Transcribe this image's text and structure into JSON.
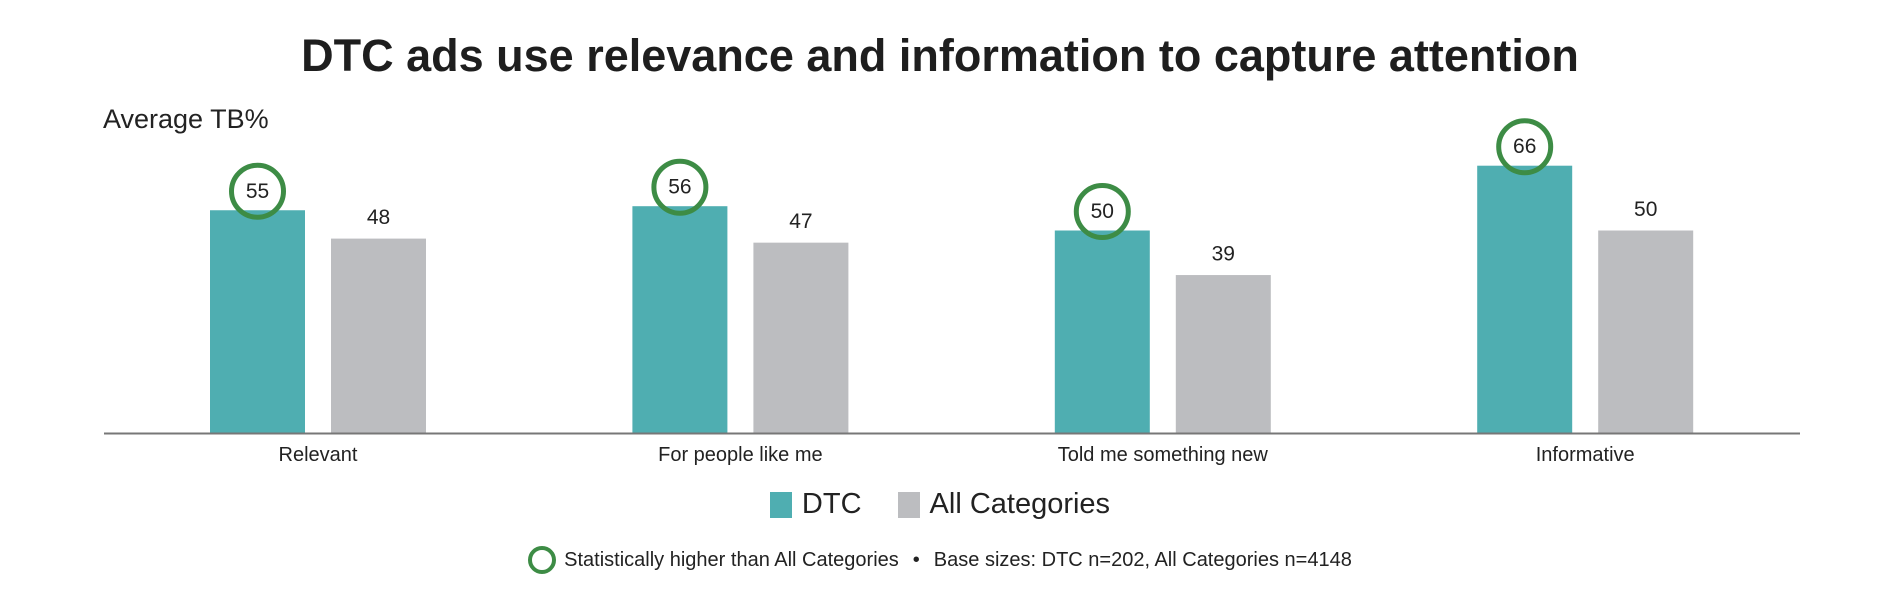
{
  "chart_data": {
    "type": "bar",
    "title": "DTC ads use relevance and information to capture attention",
    "ylabel": "Average TB%",
    "xlabel": "",
    "ylim": [
      0,
      100
    ],
    "grid": false,
    "legend_placement": "bottom",
    "categories": [
      "Relevant",
      "For people like me",
      "Told me something new",
      "Informative"
    ],
    "series": [
      {
        "name": "DTC",
        "values": [
          55,
          56,
          50,
          66
        ],
        "color": "#4faeb1",
        "significant": [
          true,
          true,
          true,
          true
        ]
      },
      {
        "name": "All Categories",
        "values": [
          48,
          47,
          39,
          50
        ],
        "color": "#bcbdc0"
      }
    ],
    "significance_color": "#3d8c45"
  },
  "footer": {
    "significance_note": "Statistically higher than All Categories",
    "separator": "•",
    "base_sizes": "Base sizes: DTC n=202, All Categories n=4148"
  }
}
